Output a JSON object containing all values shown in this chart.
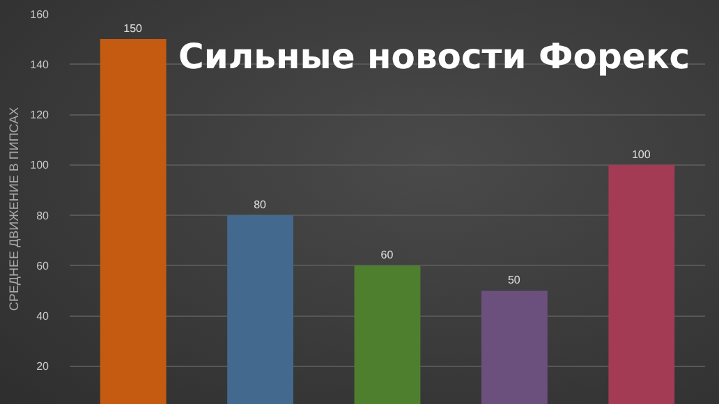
{
  "chart_data": {
    "type": "bar",
    "title": "Сильные новости Форекс",
    "ylabel": "СРЕДНЕЕ ДВИЖЕНИЕ В ПИПСАХ",
    "categories": [
      null,
      null,
      null,
      null,
      null
    ],
    "values": [
      150,
      80,
      60,
      50,
      100
    ],
    "colors": [
      "#c55a11",
      "#44698f",
      "#4e7f2e",
      "#6b4f7d",
      "#a33b55"
    ],
    "ylim": [
      5,
      160
    ],
    "yticks": [
      20,
      40,
      60,
      80,
      100,
      120,
      140,
      160
    ],
    "grid": "y",
    "data_labels": true,
    "tick_labels": "y"
  }
}
